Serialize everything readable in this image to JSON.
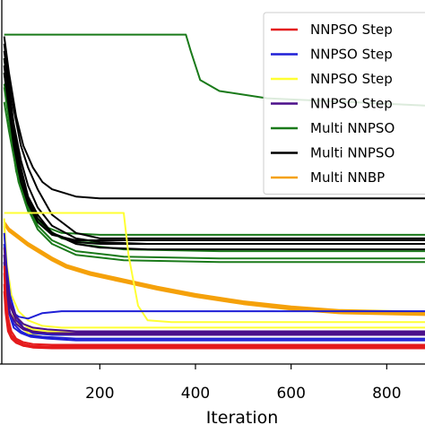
{
  "chart_data": {
    "type": "line",
    "xlabel": "Iteration",
    "ylabel": "",
    "title": "",
    "xlim": [
      -5,
      880
    ],
    "ylim": [
      0,
      1
    ],
    "xticks": [
      200,
      400,
      600,
      800
    ],
    "xtick_labels": [
      "200",
      "400",
      "600",
      "800"
    ],
    "grid": false,
    "legend_position": "top-right",
    "legend": [
      {
        "label": "NNPSO Step",
        "color": "#e41a1c"
      },
      {
        "label": "NNPSO Step",
        "color": "#1f1fd6"
      },
      {
        "label": "NNPSO Step",
        "color": "#ffff33"
      },
      {
        "label": "NNPSO Step",
        "color": "#4b0f8a"
      },
      {
        "label": "Multi NNPSO",
        "color": "#1a7a1a"
      },
      {
        "label": "Multi NNPSO",
        "color": "#000000"
      },
      {
        "label": "Multi NNBP",
        "color": "#f5a10a"
      }
    ],
    "series": [
      {
        "color": "#1a7a1a",
        "x": [
          0,
          50,
          100,
          200,
          380,
          390,
          410,
          450,
          550,
          880
        ],
        "y": [
          0.905,
          0.905,
          0.905,
          0.905,
          0.905,
          0.86,
          0.78,
          0.75,
          0.73,
          0.71
        ]
      },
      {
        "color": "#1a7a1a",
        "x": [
          0,
          10,
          25,
          40,
          60,
          80,
          120,
          200,
          400,
          880
        ],
        "y": [
          0.77,
          0.7,
          0.56,
          0.48,
          0.42,
          0.38,
          0.36,
          0.355,
          0.355,
          0.355
        ]
      },
      {
        "color": "#1a7a1a",
        "x": [
          0,
          10,
          25,
          45,
          70,
          100,
          150,
          250,
          450,
          880
        ],
        "y": [
          0.84,
          0.74,
          0.58,
          0.47,
          0.4,
          0.36,
          0.33,
          0.315,
          0.31,
          0.31
        ]
      },
      {
        "color": "#1a7a1a",
        "x": [
          0,
          10,
          25,
          45,
          70,
          100,
          150,
          250,
          450,
          880
        ],
        "y": [
          0.8,
          0.7,
          0.55,
          0.45,
          0.38,
          0.34,
          0.31,
          0.295,
          0.29,
          0.29
        ]
      },
      {
        "color": "#1a7a1a",
        "x": [
          0,
          10,
          25,
          45,
          70,
          100,
          150,
          250,
          450,
          880
        ],
        "y": [
          0.76,
          0.67,
          0.53,
          0.44,
          0.37,
          0.33,
          0.3,
          0.285,
          0.28,
          0.28
        ]
      },
      {
        "color": "#1a7a1a",
        "x": [
          0,
          10,
          30,
          50,
          80,
          120,
          160,
          250,
          450,
          880
        ],
        "y": [
          0.72,
          0.64,
          0.5,
          0.42,
          0.38,
          0.345,
          0.335,
          0.33,
          0.33,
          0.33
        ]
      },
      {
        "color": "#000000",
        "x": [
          0,
          8,
          20,
          35,
          50,
          70,
          100,
          150,
          200,
          300,
          880
        ],
        "y": [
          0.88,
          0.8,
          0.7,
          0.6,
          0.54,
          0.48,
          0.41,
          0.36,
          0.345,
          0.345,
          0.345
        ]
      },
      {
        "color": "#000000",
        "x": [
          0,
          8,
          20,
          35,
          50,
          70,
          100,
          150,
          200,
          300,
          880
        ],
        "y": [
          0.86,
          0.78,
          0.66,
          0.56,
          0.49,
          0.43,
          0.38,
          0.345,
          0.335,
          0.33,
          0.33
        ]
      },
      {
        "color": "#000000",
        "x": [
          0,
          8,
          20,
          35,
          50,
          70,
          100,
          150,
          200,
          300,
          880
        ],
        "y": [
          0.84,
          0.76,
          0.64,
          0.54,
          0.46,
          0.41,
          0.36,
          0.33,
          0.32,
          0.315,
          0.315
        ]
      },
      {
        "color": "#000000",
        "x": [
          0,
          10,
          25,
          40,
          60,
          80,
          100,
          150,
          200,
          300,
          880
        ],
        "y": [
          0.9,
          0.8,
          0.68,
          0.6,
          0.54,
          0.5,
          0.48,
          0.46,
          0.455,
          0.455,
          0.455
        ]
      },
      {
        "color": "#000000",
        "x": [
          0,
          8,
          20,
          35,
          50,
          70,
          100,
          150,
          200,
          300,
          880
        ],
        "y": [
          0.82,
          0.73,
          0.62,
          0.52,
          0.45,
          0.4,
          0.36,
          0.335,
          0.33,
          0.33,
          0.33
        ]
      },
      {
        "color": "#000000",
        "x": [
          0,
          8,
          20,
          35,
          50,
          70,
          100,
          150,
          200,
          300,
          880
        ],
        "y": [
          0.8,
          0.72,
          0.6,
          0.5,
          0.44,
          0.39,
          0.355,
          0.34,
          0.34,
          0.34,
          0.34
        ]
      },
      {
        "color": "#f5a10a",
        "x": [
          0,
          10,
          30,
          50,
          75,
          100,
          130,
          180,
          250,
          320,
          400,
          500,
          600,
          700,
          880
        ],
        "y": [
          0.39,
          0.37,
          0.35,
          0.33,
          0.31,
          0.29,
          0.27,
          0.25,
          0.23,
          0.21,
          0.19,
          0.17,
          0.155,
          0.145,
          0.14
        ]
      },
      {
        "color": "#f5a10a",
        "x": [
          0,
          10,
          30,
          50,
          75,
          100,
          130,
          180,
          250,
          320,
          400,
          500,
          600,
          700,
          880
        ],
        "y": [
          0.385,
          0.365,
          0.345,
          0.325,
          0.305,
          0.285,
          0.265,
          0.245,
          0.225,
          0.205,
          0.185,
          0.165,
          0.15,
          0.14,
          0.135
        ]
      },
      {
        "color": "#f5a10a",
        "x": [
          0,
          10,
          30,
          50,
          75,
          100,
          130,
          180,
          250,
          320,
          400,
          500,
          600,
          700,
          880
        ],
        "y": [
          0.39,
          0.372,
          0.352,
          0.332,
          0.312,
          0.292,
          0.272,
          0.252,
          0.232,
          0.212,
          0.192,
          0.172,
          0.158,
          0.148,
          0.143
        ]
      },
      {
        "color": "#ffff33",
        "x": [
          0,
          20,
          50,
          80,
          120,
          200,
          250,
          260,
          280,
          300,
          350,
          880
        ],
        "y": [
          0.415,
          0.415,
          0.415,
          0.415,
          0.415,
          0.415,
          0.415,
          0.3,
          0.16,
          0.12,
          0.115,
          0.115
        ]
      },
      {
        "color": "#ffff33",
        "x": [
          0,
          5,
          10,
          20,
          35,
          50,
          80,
          150,
          250,
          500,
          880
        ],
        "y": [
          0.4,
          0.28,
          0.18,
          0.13,
          0.1,
          0.085,
          0.075,
          0.07,
          0.07,
          0.07,
          0.07
        ]
      },
      {
        "color": "#ffff33",
        "x": [
          0,
          5,
          12,
          25,
          40,
          60,
          90,
          150,
          250,
          500,
          880
        ],
        "y": [
          0.36,
          0.26,
          0.18,
          0.13,
          0.11,
          0.095,
          0.09,
          0.09,
          0.09,
          0.09,
          0.09
        ]
      },
      {
        "color": "#ffff33",
        "x": [
          0,
          5,
          15,
          30,
          50,
          80,
          120,
          200,
          300,
          500,
          880
        ],
        "y": [
          0.33,
          0.24,
          0.16,
          0.12,
          0.1,
          0.085,
          0.08,
          0.08,
          0.08,
          0.08,
          0.08
        ]
      },
      {
        "color": "#ffff33",
        "x": [
          0,
          6,
          15,
          30,
          50,
          80,
          120,
          200,
          300,
          500,
          880
        ],
        "y": [
          0.38,
          0.27,
          0.19,
          0.145,
          0.12,
          0.105,
          0.1,
          0.1,
          0.1,
          0.1,
          0.1
        ]
      },
      {
        "color": "#1f1fd6",
        "x": [
          0,
          4,
          10,
          20,
          30,
          50,
          80,
          120,
          200,
          300,
          500,
          880
        ],
        "y": [
          0.33,
          0.25,
          0.18,
          0.14,
          0.13,
          0.125,
          0.14,
          0.145,
          0.145,
          0.145,
          0.145,
          0.145
        ]
      },
      {
        "color": "#1f1fd6",
        "x": [
          0,
          4,
          10,
          20,
          35,
          50,
          80,
          150,
          300,
          500,
          880
        ],
        "y": [
          0.3,
          0.22,
          0.15,
          0.11,
          0.09,
          0.08,
          0.075,
          0.07,
          0.07,
          0.07,
          0.07
        ]
      },
      {
        "color": "#1f1fd6",
        "x": [
          0,
          5,
          12,
          25,
          40,
          60,
          100,
          200,
          400,
          880
        ],
        "y": [
          0.36,
          0.27,
          0.19,
          0.13,
          0.1,
          0.085,
          0.08,
          0.08,
          0.08,
          0.08
        ]
      },
      {
        "color": "#1f1fd6",
        "x": [
          0,
          4,
          10,
          20,
          35,
          55,
          90,
          150,
          300,
          880
        ],
        "y": [
          0.28,
          0.21,
          0.14,
          0.1,
          0.085,
          0.075,
          0.07,
          0.065,
          0.065,
          0.065
        ]
      },
      {
        "color": "#4b0f8a",
        "x": [
          0,
          5,
          12,
          25,
          40,
          60,
          90,
          150,
          250,
          400,
          880
        ],
        "y": [
          0.32,
          0.24,
          0.17,
          0.13,
          0.11,
          0.1,
          0.095,
          0.09,
          0.09,
          0.09,
          0.09
        ]
      },
      {
        "color": "#4b0f8a",
        "x": [
          0,
          5,
          12,
          25,
          40,
          60,
          90,
          150,
          250,
          400,
          880
        ],
        "y": [
          0.3,
          0.22,
          0.16,
          0.12,
          0.1,
          0.09,
          0.085,
          0.08,
          0.08,
          0.08,
          0.08
        ]
      },
      {
        "color": "#4b0f8a",
        "x": [
          0,
          5,
          12,
          25,
          40,
          60,
          90,
          150,
          250,
          400,
          880
        ],
        "y": [
          0.28,
          0.2,
          0.14,
          0.11,
          0.095,
          0.088,
          0.085,
          0.085,
          0.085,
          0.085,
          0.085
        ]
      },
      {
        "color": "#e41a1c",
        "x": [
          0,
          3,
          8,
          15,
          25,
          40,
          60,
          100,
          200,
          400,
          880
        ],
        "y": [
          0.25,
          0.17,
          0.11,
          0.08,
          0.065,
          0.055,
          0.05,
          0.048,
          0.048,
          0.048,
          0.048
        ]
      },
      {
        "color": "#e41a1c",
        "x": [
          0,
          3,
          8,
          15,
          25,
          40,
          60,
          100,
          200,
          400,
          880
        ],
        "y": [
          0.22,
          0.15,
          0.1,
          0.075,
          0.06,
          0.05,
          0.045,
          0.043,
          0.043,
          0.043,
          0.043
        ]
      },
      {
        "color": "#e41a1c",
        "x": [
          0,
          3,
          8,
          15,
          25,
          40,
          60,
          100,
          200,
          400,
          880
        ],
        "y": [
          0.27,
          0.19,
          0.13,
          0.09,
          0.07,
          0.06,
          0.055,
          0.053,
          0.053,
          0.053,
          0.053
        ]
      },
      {
        "color": "#e41a1c",
        "x": [
          0,
          3,
          8,
          15,
          25,
          40,
          60,
          100,
          200,
          400,
          880
        ],
        "y": [
          0.2,
          0.14,
          0.09,
          0.07,
          0.058,
          0.05,
          0.047,
          0.046,
          0.046,
          0.046,
          0.046
        ]
      }
    ]
  }
}
